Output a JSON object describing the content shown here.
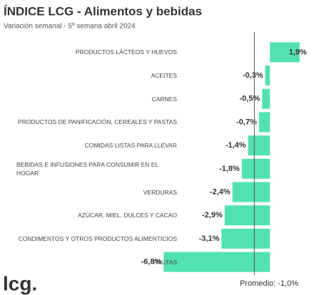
{
  "chart_data": {
    "type": "hbar",
    "title": "ÍNDICE LCG - Alimentos y bebidas",
    "subtitle": "Variación semanal - 5º semana abril 2024",
    "categories": [
      "PRODUCTOS LÁCTEOS Y HUEVOS",
      "ACEITES",
      "CARNES",
      "PRODUCTOS DE PANIFICACIÓN, CEREALES Y PASTAS",
      "COMIDAS LISTAS PARA LLEVAR",
      "BEBIDAS E INFUSIONES PARA CONSUMIR EN EL HOGAR",
      "VERDURAS",
      "AZÚCAR, MIEL, DULCES Y CACAO",
      "CONDIMENTOS Y OTROS PRODUCTOS ALIMENTICIOS",
      "FRUTAS"
    ],
    "values": [
      1.9,
      -0.3,
      -0.5,
      -0.7,
      -1.4,
      -1.8,
      -2.4,
      -2.9,
      -3.1,
      -6.8
    ],
    "value_labels": [
      "1,9%",
      "-0,3%",
      "-0,5%",
      "-0,7%",
      "-1,4%",
      "-1,8%",
      "-2,4%",
      "-2,9%",
      "-3,1%",
      "-6,8%"
    ],
    "color": "#52e2b2",
    "xlim": [
      -7,
      2
    ],
    "average": -1.0,
    "average_label": "Promedio: -1,0%"
  },
  "logo": "lcg."
}
